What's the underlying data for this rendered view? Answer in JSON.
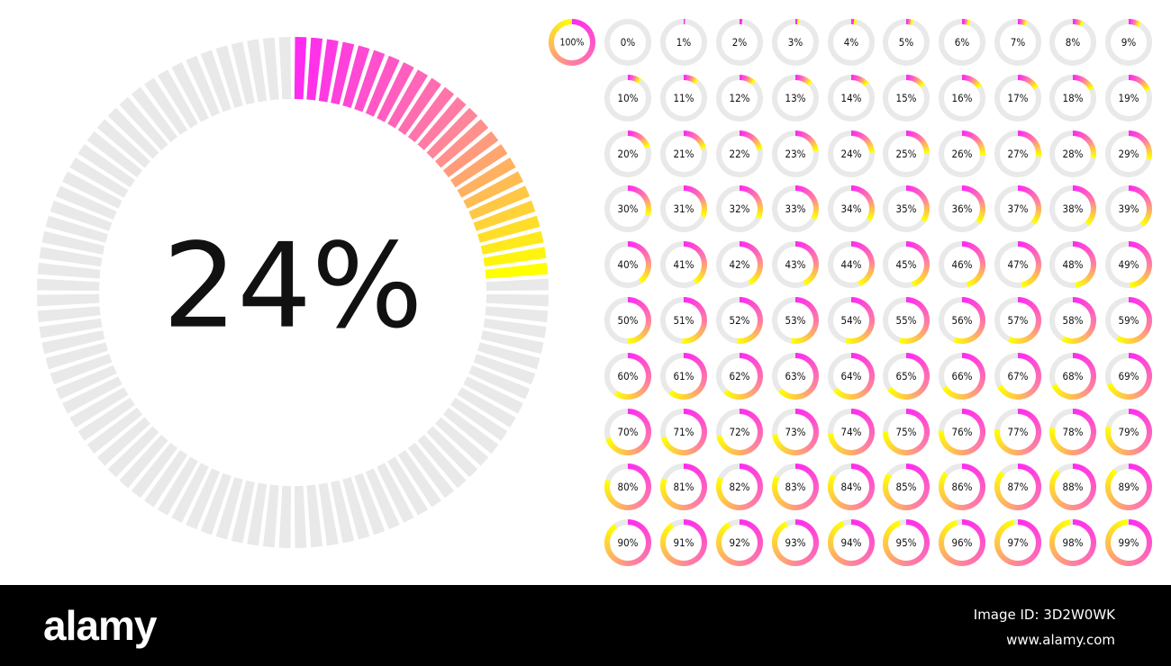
{
  "chart_data": {
    "type": "radial-progress",
    "main": {
      "value": 24,
      "label": "24%",
      "segments": 100
    },
    "grid": [
      {
        "value": 100,
        "label": "100%"
      },
      {
        "value": 0,
        "label": "0%"
      },
      {
        "value": 1,
        "label": "1%"
      },
      {
        "value": 2,
        "label": "2%"
      },
      {
        "value": 3,
        "label": "3%"
      },
      {
        "value": 4,
        "label": "4%"
      },
      {
        "value": 5,
        "label": "5%"
      },
      {
        "value": 6,
        "label": "6%"
      },
      {
        "value": 7,
        "label": "7%"
      },
      {
        "value": 8,
        "label": "8%"
      },
      {
        "value": 9,
        "label": "9%"
      },
      {
        "value": 10,
        "label": "10%"
      },
      {
        "value": 11,
        "label": "11%"
      },
      {
        "value": 12,
        "label": "12%"
      },
      {
        "value": 13,
        "label": "13%"
      },
      {
        "value": 14,
        "label": "14%"
      },
      {
        "value": 15,
        "label": "15%"
      },
      {
        "value": 16,
        "label": "16%"
      },
      {
        "value": 17,
        "label": "17%"
      },
      {
        "value": 18,
        "label": "18%"
      },
      {
        "value": 19,
        "label": "19%"
      },
      {
        "value": 20,
        "label": "20%"
      },
      {
        "value": 21,
        "label": "21%"
      },
      {
        "value": 22,
        "label": "22%"
      },
      {
        "value": 23,
        "label": "23%"
      },
      {
        "value": 24,
        "label": "24%"
      },
      {
        "value": 25,
        "label": "25%"
      },
      {
        "value": 26,
        "label": "26%"
      },
      {
        "value": 27,
        "label": "27%"
      },
      {
        "value": 28,
        "label": "28%"
      },
      {
        "value": 29,
        "label": "29%"
      },
      {
        "value": 30,
        "label": "30%"
      },
      {
        "value": 31,
        "label": "31%"
      },
      {
        "value": 32,
        "label": "32%"
      },
      {
        "value": 33,
        "label": "33%"
      },
      {
        "value": 34,
        "label": "34%"
      },
      {
        "value": 35,
        "label": "35%"
      },
      {
        "value": 36,
        "label": "36%"
      },
      {
        "value": 37,
        "label": "37%"
      },
      {
        "value": 38,
        "label": "38%"
      },
      {
        "value": 39,
        "label": "39%"
      },
      {
        "value": 40,
        "label": "40%"
      },
      {
        "value": 41,
        "label": "41%"
      },
      {
        "value": 42,
        "label": "42%"
      },
      {
        "value": 43,
        "label": "43%"
      },
      {
        "value": 44,
        "label": "44%"
      },
      {
        "value": 45,
        "label": "45%"
      },
      {
        "value": 46,
        "label": "46%"
      },
      {
        "value": 47,
        "label": "47%"
      },
      {
        "value": 48,
        "label": "48%"
      },
      {
        "value": 49,
        "label": "49%"
      },
      {
        "value": 50,
        "label": "50%"
      },
      {
        "value": 51,
        "label": "51%"
      },
      {
        "value": 52,
        "label": "52%"
      },
      {
        "value": 53,
        "label": "53%"
      },
      {
        "value": 54,
        "label": "54%"
      },
      {
        "value": 55,
        "label": "55%"
      },
      {
        "value": 56,
        "label": "56%"
      },
      {
        "value": 57,
        "label": "57%"
      },
      {
        "value": 58,
        "label": "58%"
      },
      {
        "value": 59,
        "label": "59%"
      },
      {
        "value": 60,
        "label": "60%"
      },
      {
        "value": 61,
        "label": "61%"
      },
      {
        "value": 62,
        "label": "62%"
      },
      {
        "value": 63,
        "label": "63%"
      },
      {
        "value": 64,
        "label": "64%"
      },
      {
        "value": 65,
        "label": "65%"
      },
      {
        "value": 66,
        "label": "66%"
      },
      {
        "value": 67,
        "label": "67%"
      },
      {
        "value": 68,
        "label": "68%"
      },
      {
        "value": 69,
        "label": "69%"
      },
      {
        "value": 70,
        "label": "70%"
      },
      {
        "value": 71,
        "label": "71%"
      },
      {
        "value": 72,
        "label": "72%"
      },
      {
        "value": 73,
        "label": "73%"
      },
      {
        "value": 74,
        "label": "74%"
      },
      {
        "value": 75,
        "label": "75%"
      },
      {
        "value": 76,
        "label": "76%"
      },
      {
        "value": 77,
        "label": "77%"
      },
      {
        "value": 78,
        "label": "78%"
      },
      {
        "value": 79,
        "label": "79%"
      },
      {
        "value": 80,
        "label": "80%"
      },
      {
        "value": 81,
        "label": "81%"
      },
      {
        "value": 82,
        "label": "82%"
      },
      {
        "value": 83,
        "label": "83%"
      },
      {
        "value": 84,
        "label": "84%"
      },
      {
        "value": 85,
        "label": "85%"
      },
      {
        "value": 86,
        "label": "86%"
      },
      {
        "value": 87,
        "label": "87%"
      },
      {
        "value": 88,
        "label": "88%"
      },
      {
        "value": 89,
        "label": "89%"
      },
      {
        "value": 90,
        "label": "90%"
      },
      {
        "value": 91,
        "label": "91%"
      },
      {
        "value": 92,
        "label": "92%"
      },
      {
        "value": 93,
        "label": "93%"
      },
      {
        "value": 94,
        "label": "94%"
      },
      {
        "value": 95,
        "label": "95%"
      },
      {
        "value": 96,
        "label": "96%"
      },
      {
        "value": 97,
        "label": "97%"
      },
      {
        "value": 98,
        "label": "98%"
      },
      {
        "value": 99,
        "label": "99%"
      }
    ],
    "colors": {
      "gradient_start": "#ff2bf0",
      "gradient_mid": "#ff7fa0",
      "gradient_end": "#ffff00",
      "track": "#e9e9e9",
      "text": "#111111"
    }
  },
  "footer": {
    "logo": "alamy",
    "image_id": "Image ID: 3D2W0WK",
    "site": "www.alamy.com"
  }
}
